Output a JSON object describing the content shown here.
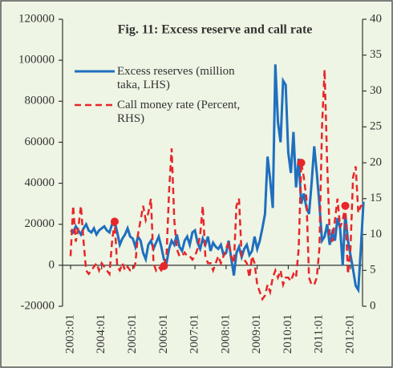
{
  "chart_data": {
    "type": "line",
    "title": "Fig. 11: Excess reserve and call rate",
    "categories": [
      "2003:01",
      null,
      null,
      null,
      null,
      null,
      null,
      null,
      null,
      null,
      null,
      null,
      "2004:01",
      null,
      null,
      null,
      null,
      null,
      null,
      null,
      null,
      null,
      null,
      null,
      "2005:01",
      null,
      null,
      null,
      null,
      null,
      null,
      null,
      null,
      null,
      null,
      null,
      "2006:01",
      null,
      null,
      null,
      null,
      null,
      null,
      null,
      null,
      null,
      null,
      null,
      "2007:01",
      null,
      null,
      null,
      null,
      null,
      null,
      null,
      null,
      null,
      null,
      null,
      "2008:01",
      null,
      null,
      null,
      null,
      null,
      null,
      null,
      null,
      null,
      null,
      null,
      "2009:01",
      null,
      null,
      null,
      null,
      null,
      null,
      null,
      null,
      null,
      null,
      null,
      "2010:01",
      null,
      null,
      null,
      null,
      null,
      null,
      null,
      null,
      null,
      null,
      null,
      "2011:01",
      null,
      null,
      null,
      null,
      null,
      null,
      null,
      null,
      null,
      null,
      null,
      "2012:01",
      null,
      null,
      null,
      null,
      null
    ],
    "series": [
      {
        "name": "Excess reserves (million taka, LHS)",
        "color": "#1f6fbf",
        "axis": "y",
        "dash": false,
        "values": [
          17000,
          16000,
          19000,
          17000,
          15000,
          18000,
          20000,
          17000,
          16000,
          18000,
          15000,
          17000,
          18000,
          19000,
          17000,
          16000,
          20000,
          21500,
          16000,
          10000,
          13000,
          15000,
          18000,
          14000,
          13000,
          9000,
          14000,
          12000,
          6000,
          3000,
          10000,
          12000,
          8000,
          11000,
          14000,
          9000,
          3000,
          1000,
          8000,
          12000,
          10000,
          15000,
          9000,
          7000,
          12000,
          14000,
          10000,
          16000,
          17000,
          11000,
          8000,
          13000,
          10000,
          14000,
          7000,
          11000,
          9000,
          8000,
          10000,
          5000,
          6000,
          12000,
          3000,
          -5000,
          6000,
          9000,
          4000,
          8000,
          10000,
          5000,
          7000,
          14000,
          8000,
          12000,
          18000,
          25000,
          53000,
          42000,
          28000,
          98000,
          70000,
          60000,
          90000,
          88000,
          55000,
          45000,
          65000,
          38000,
          52000,
          30000,
          35000,
          28000,
          25000,
          40000,
          58000,
          45000,
          30000,
          12000,
          14000,
          20000,
          10000,
          16000,
          12000,
          23000,
          18000,
          0,
          25000,
          12000,
          5000,
          -2000,
          -10000,
          -12000,
          8000,
          31000
        ]
      },
      {
        "name": "Call money rate (Percent, RHS)",
        "color": "#e8262a",
        "axis": "y2",
        "dash": true,
        "marker_indices": [
          17,
          36,
          89,
          106
        ],
        "values": [
          7,
          14,
          9,
          11,
          14,
          9,
          5,
          4.5,
          5,
          5.5,
          6,
          5,
          6,
          5.5,
          5,
          4.5,
          9,
          11.8,
          5.5,
          5,
          6,
          5,
          5.5,
          5,
          5,
          6,
          10,
          12,
          14,
          12,
          13,
          15,
          6,
          5,
          5.5,
          5,
          5.6,
          7,
          16,
          22,
          12,
          8,
          7,
          7,
          7.5,
          7,
          7,
          6.5,
          7,
          8,
          10,
          14,
          7,
          6,
          6,
          5,
          6,
          7,
          6,
          7,
          8,
          9,
          7,
          6,
          14,
          15,
          7,
          6.5,
          6,
          4,
          7,
          6,
          3,
          2,
          1,
          1.5,
          3,
          2,
          4,
          5,
          4,
          5,
          3,
          4,
          4,
          3.5,
          4.5,
          4,
          8,
          20,
          18,
          15,
          4,
          3,
          3,
          4,
          8,
          25,
          33,
          20,
          10,
          9,
          12,
          15,
          11,
          12,
          14,
          4.5,
          8,
          18,
          19.5,
          13,
          14,
          14
        ]
      }
    ],
    "ylim": [
      -20000,
      120000
    ],
    "yticks": [
      -20000,
      0,
      20000,
      40000,
      60000,
      80000,
      100000,
      120000
    ],
    "y2lim": [
      0,
      40
    ],
    "y2ticks": [
      0,
      5,
      10,
      15,
      20,
      25,
      30,
      35,
      40
    ],
    "grid": false
  }
}
